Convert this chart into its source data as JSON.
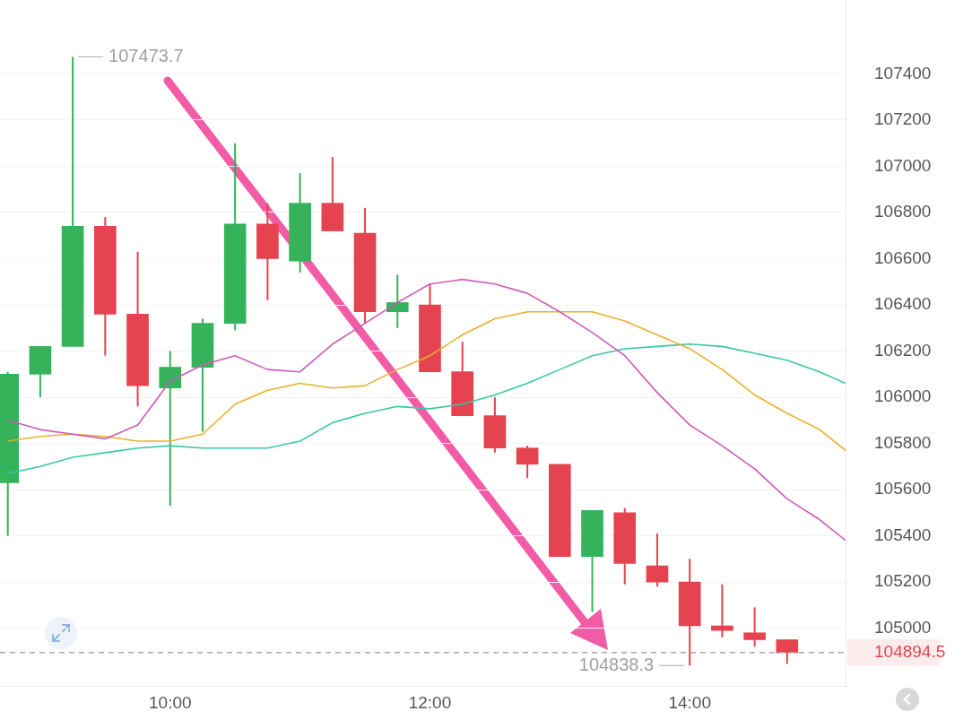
{
  "chart_data": {
    "type": "candlestick",
    "x": [
      8.75,
      9,
      9.25,
      9.5,
      9.75,
      10,
      10.25,
      10.5,
      10.75,
      11,
      11.25,
      11.5,
      11.75,
      12,
      12.25,
      12.5,
      12.75,
      13,
      13.25,
      13.5,
      13.75,
      14,
      14.25,
      14.5,
      14.75
    ],
    "ohlc": [
      [
        105630,
        106110,
        105400,
        106100
      ],
      [
        106100,
        106220,
        106000,
        106220
      ],
      [
        106220,
        107473.7,
        106220,
        106740
      ],
      [
        106740,
        106780,
        106180,
        106360
      ],
      [
        106360,
        106630,
        105960,
        106050
      ],
      [
        106040,
        106200,
        105530,
        106130
      ],
      [
        106130,
        106340,
        105850,
        106320
      ],
      [
        106320,
        107100,
        106290,
        106750
      ],
      [
        106750,
        106840,
        106420,
        106600
      ],
      [
        106590,
        106970,
        106540,
        106840
      ],
      [
        106840,
        107040,
        106720,
        106720
      ],
      [
        106710,
        106820,
        106320,
        106370
      ],
      [
        106370,
        106530,
        106300,
        106410
      ],
      [
        106400,
        106490,
        106110,
        106110
      ],
      [
        106110,
        106240,
        105920,
        105920
      ],
      [
        105920,
        106000,
        105760,
        105780
      ],
      [
        105780,
        105790,
        105650,
        105710
      ],
      [
        105710,
        105710,
        105310,
        105310
      ],
      [
        105310,
        105510,
        105070,
        105510
      ],
      [
        105500,
        105520,
        105190,
        105280
      ],
      [
        105270,
        105410,
        105180,
        105200
      ],
      [
        105200,
        105300,
        104838.3,
        105010
      ],
      [
        105010,
        105190,
        104960,
        104990
      ],
      [
        104980,
        105090,
        104920,
        104950
      ],
      [
        104950,
        104950,
        104845,
        104894.5
      ]
    ],
    "colors": [
      "#34b35a",
      "#34b35a",
      "#34b35a",
      "#e5434f",
      "#e5434f",
      "#34b35a",
      "#34b35a",
      "#34b35a",
      "#e5434f",
      "#34b35a",
      "#e5434f",
      "#e5434f",
      "#34b35a",
      "#e5434f",
      "#e5434f",
      "#e5434f",
      "#e5434f",
      "#e5434f",
      "#34b35a",
      "#e5434f",
      "#e5434f",
      "#e5434f",
      "#e5434f",
      "#e5434f",
      "#e5434f"
    ],
    "series": [
      {
        "type": "line",
        "color": "#d05ab8",
        "x": [
          8.75,
          9,
          9.25,
          9.5,
          9.75,
          10,
          10.25,
          10.5,
          10.75,
          11,
          11.25,
          11.5,
          11.75,
          12,
          12.25,
          12.5,
          12.75,
          13,
          13.25,
          13.5,
          13.75,
          14,
          14.25,
          14.5,
          14.75,
          15,
          15.2
        ],
        "values": [
          105900,
          105860,
          105840,
          105820,
          105880,
          106070,
          106140,
          106180,
          106120,
          106110,
          106230,
          106320,
          106410,
          106490,
          106510,
          106490,
          106450,
          106370,
          106280,
          106180,
          106020,
          105880,
          105790,
          105690,
          105560,
          105470,
          105380
        ]
      },
      {
        "type": "line",
        "color": "#e8b22a",
        "x": [
          8.75,
          9,
          9.25,
          9.5,
          9.75,
          10,
          10.25,
          10.5,
          10.75,
          11,
          11.25,
          11.5,
          11.75,
          12,
          12.25,
          12.5,
          12.75,
          13,
          13.25,
          13.5,
          13.75,
          14,
          14.25,
          14.5,
          14.75,
          15,
          15.2
        ],
        "values": [
          105810,
          105830,
          105840,
          105830,
          105810,
          105810,
          105840,
          105970,
          106030,
          106060,
          106040,
          106050,
          106120,
          106180,
          106270,
          106340,
          106370,
          106370,
          106370,
          106330,
          106270,
          106210,
          106120,
          106010,
          105930,
          105860,
          105770
        ]
      },
      {
        "type": "line",
        "color": "#38c9a4",
        "x": [
          8.75,
          9,
          9.25,
          9.5,
          9.75,
          10,
          10.25,
          10.5,
          10.75,
          11,
          11.25,
          11.5,
          11.75,
          12,
          12.25,
          12.5,
          12.75,
          13,
          13.25,
          13.5,
          13.75,
          14,
          14.25,
          14.5,
          14.75,
          15,
          15.2
        ],
        "values": [
          105670,
          105700,
          105740,
          105760,
          105780,
          105790,
          105780,
          105780,
          105780,
          105810,
          105890,
          105930,
          105960,
          105950,
          105970,
          106010,
          106060,
          106120,
          106180,
          106210,
          106220,
          106230,
          106220,
          106190,
          106160,
          106110,
          106060
        ]
      }
    ],
    "xlim": [
      8.69,
      15.2
    ],
    "xticks": [
      {
        "value": 10,
        "label": "10:00"
      },
      {
        "value": 12,
        "label": "12:00"
      },
      {
        "value": 14,
        "label": "14:00"
      }
    ],
    "ylim": [
      104750,
      107720
    ],
    "yticks": [
      105000,
      105200,
      105400,
      105600,
      105800,
      106000,
      106200,
      106400,
      106600,
      106800,
      107000,
      107200,
      107400
    ],
    "grid": "y",
    "legend": false,
    "annotations": [
      {
        "text": "107473.7",
        "x": 9.25,
        "y": 107473.7
      },
      {
        "text": "104838.3",
        "x": 14,
        "y": 104838.3
      }
    ],
    "ref_lines": [
      {
        "axis": "y",
        "value": 104894.5,
        "label": "104894.5",
        "color": "#a8a8a8",
        "line_style": "dashed"
      }
    ]
  }
}
